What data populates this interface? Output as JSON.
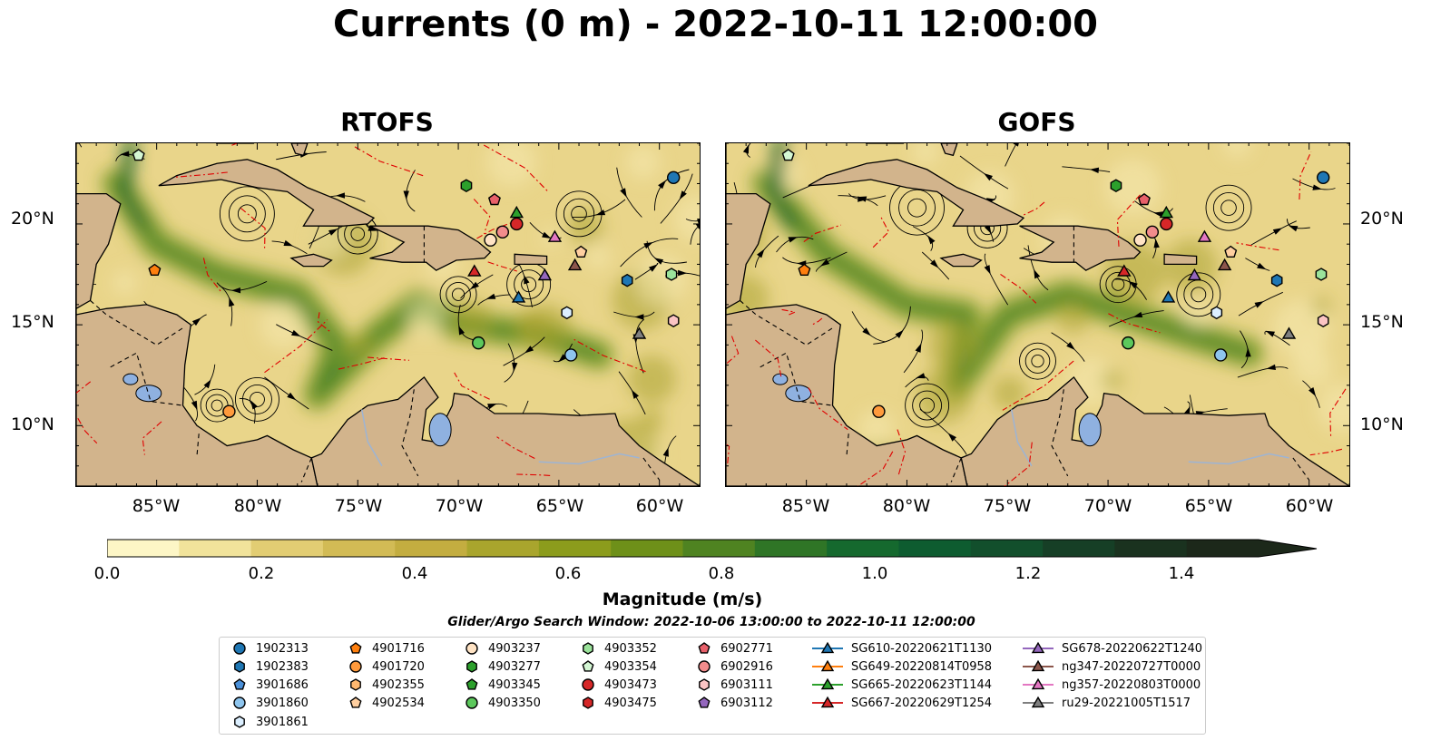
{
  "title": "Currents (0 m) - 2022-10-11 12:00:00",
  "panels": [
    {
      "name": "RTOFS"
    },
    {
      "name": "GOFS"
    }
  ],
  "axes": {
    "lat_labels": [
      "20°N",
      "15°N",
      "10°N"
    ],
    "lon_labels": [
      "85°W",
      "80°W",
      "75°W",
      "70°W",
      "65°W",
      "60°W"
    ]
  },
  "colorbar": {
    "label": "Magnitude (m/s)",
    "ticks": [
      "0.0",
      "0.2",
      "0.4",
      "0.6",
      "0.8",
      "1.0",
      "1.2",
      "1.4"
    ],
    "range": [
      0.0,
      1.6
    ],
    "extend": "max",
    "colors": [
      "#fdf6c6",
      "#f1e39b",
      "#e2cd73",
      "#d2bb55",
      "#c3ad40",
      "#a9a52d",
      "#8c9c1c",
      "#6e9019",
      "#4f8321",
      "#2f7526",
      "#15692e",
      "#0e5c30",
      "#124f2c",
      "#163f26",
      "#1a321f",
      "#1c281a"
    ]
  },
  "search_window": "Glider/Argo Search Window: 2022-10-06 13:00:00 to 2022-10-11 12:00:00",
  "legend": [
    {
      "label": "1902313",
      "shape": "circle",
      "color": "#1f77b4"
    },
    {
      "label": "1902383",
      "shape": "hexagon",
      "color": "#1f77b4"
    },
    {
      "label": "3901686",
      "shape": "pentagon",
      "color": "#4a90d9"
    },
    {
      "label": "3901860",
      "shape": "circle",
      "color": "#8ec5ee"
    },
    {
      "label": "3901861",
      "shape": "hexagon",
      "color": "#dcefff"
    },
    {
      "label": "4901716",
      "shape": "pentagon",
      "color": "#ff7f0e"
    },
    {
      "label": "4901720",
      "shape": "circle",
      "color": "#ff9a3c"
    },
    {
      "label": "4902355",
      "shape": "hexagon",
      "color": "#ffb870"
    },
    {
      "label": "4902534",
      "shape": "pentagon",
      "color": "#ffcfa0"
    },
    {
      "label": "4903237",
      "shape": "circle",
      "color": "#ffe3c4"
    },
    {
      "label": "4903277",
      "shape": "hexagon",
      "color": "#2ca02c"
    },
    {
      "label": "4903345",
      "shape": "pentagon",
      "color": "#2ca02c"
    },
    {
      "label": "4903350",
      "shape": "circle",
      "color": "#5cc85c"
    },
    {
      "label": "4903352",
      "shape": "hexagon",
      "color": "#9be39b"
    },
    {
      "label": "4903354",
      "shape": "pentagon",
      "color": "#d4f7d4"
    },
    {
      "label": "4903473",
      "shape": "circle",
      "color": "#d62728"
    },
    {
      "label": "4903475",
      "shape": "hexagon",
      "color": "#d62728"
    },
    {
      "label": "6902771",
      "shape": "pentagon",
      "color": "#e8606a"
    },
    {
      "label": "6902916",
      "shape": "circle",
      "color": "#f28c8c"
    },
    {
      "label": "6903111",
      "shape": "hexagon",
      "color": "#fbc4c4"
    },
    {
      "label": "6903112",
      "shape": "pentagon",
      "color": "#9467bd"
    },
    {
      "label": "SG610-20220621T1130",
      "shape": "triangle",
      "color": "#1f77b4"
    },
    {
      "label": "SG649-20220814T0958",
      "shape": "triangle",
      "color": "#ff7f0e"
    },
    {
      "label": "SG665-20220623T1144",
      "shape": "triangle",
      "color": "#2ca02c"
    },
    {
      "label": "SG667-20220629T1254",
      "shape": "triangle",
      "color": "#d62728"
    },
    {
      "label": "SG678-20220622T1240",
      "shape": "triangle",
      "color": "#9467bd"
    },
    {
      "label": "ng347-20220727T0000",
      "shape": "triangle",
      "color": "#8c564b"
    },
    {
      "label": "ng357-20220803T0000",
      "shape": "triangle",
      "color": "#e377c2"
    },
    {
      "label": "ru29-20221005T1517",
      "shape": "triangle",
      "color": "#7f7f7f"
    }
  ],
  "markers": [
    {
      "id": "1902313",
      "lon": -59.3,
      "lat": 22.3
    },
    {
      "id": "4903277",
      "lon": -69.6,
      "lat": 21.9
    },
    {
      "id": "6902771",
      "lon": -68.2,
      "lat": 21.2
    },
    {
      "id": "SG665-20220623T1144",
      "lon": -67.1,
      "lat": 20.5
    },
    {
      "id": "4903473",
      "lon": -67.1,
      "lat": 20.0
    },
    {
      "id": "6902916",
      "lon": -67.8,
      "lat": 19.6
    },
    {
      "id": "4903237",
      "lon": -68.4,
      "lat": 19.2
    },
    {
      "id": "ng357-20220803T0000",
      "lon": -65.2,
      "lat": 19.3
    },
    {
      "id": "4902534",
      "lon": -63.9,
      "lat": 18.6
    },
    {
      "id": "ng347-20220727T0000",
      "lon": -64.2,
      "lat": 17.9
    },
    {
      "id": "SG678-20220622T1240",
      "lon": -65.7,
      "lat": 17.4
    },
    {
      "id": "SG667-20220629T1254",
      "lon": -69.2,
      "lat": 17.6
    },
    {
      "id": "4901716",
      "lon": -85.1,
      "lat": 17.7
    },
    {
      "id": "1902383",
      "lon": -61.6,
      "lat": 17.2
    },
    {
      "id": "4903352",
      "lon": -59.4,
      "lat": 17.5
    },
    {
      "id": "SG610-20220621T1130",
      "lon": -67.0,
      "lat": 16.3
    },
    {
      "id": "3901861",
      "lon": -64.6,
      "lat": 15.6
    },
    {
      "id": "6903111",
      "lon": -59.3,
      "lat": 15.2
    },
    {
      "id": "ru29-20221005T1517",
      "lon": -61.0,
      "lat": 14.5
    },
    {
      "id": "4903350",
      "lon": -69.0,
      "lat": 14.1
    },
    {
      "id": "3901860",
      "lon": -64.4,
      "lat": 13.5
    },
    {
      "id": "4901720",
      "lon": -81.4,
      "lat": 10.7
    },
    {
      "id": "4903354",
      "lon": -85.9,
      "lat": 23.4
    }
  ]
}
